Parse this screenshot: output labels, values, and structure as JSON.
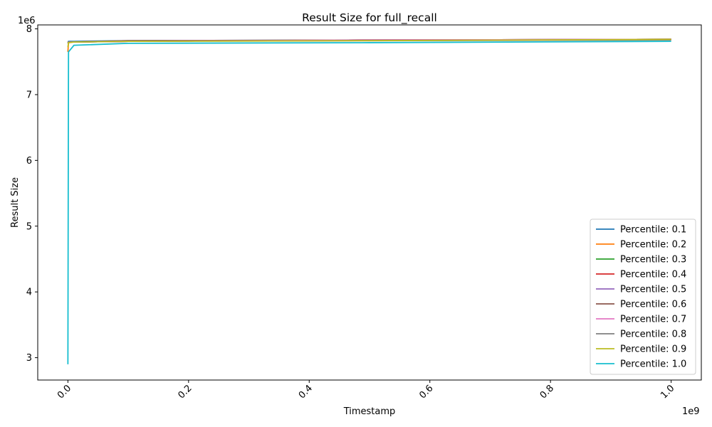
{
  "chart_data": {
    "type": "line",
    "title": "Result Size for full_recall",
    "xlabel": "Timestamp",
    "ylabel": "Result Size",
    "x_multiplier": "1e9",
    "y_multiplier": "1e6",
    "xlim": [
      -0.05,
      1.05
    ],
    "ylim": [
      2.66,
      8.06
    ],
    "x_ticks": [
      0.0,
      0.2,
      0.4,
      0.6,
      0.8,
      1.0
    ],
    "x_tick_labels": [
      "0.0",
      "0.2",
      "0.4",
      "0.6",
      "0.8",
      "1.0"
    ],
    "y_ticks": [
      3,
      4,
      5,
      6,
      7,
      8
    ],
    "y_tick_labels": [
      "3",
      "4",
      "5",
      "6",
      "7",
      "8"
    ],
    "grid": false,
    "legend_position": "lower-right",
    "series": [
      {
        "name": "Percentile: 0.1",
        "color": "#1f77b4",
        "x": [
          0,
          0.001,
          0.01,
          0.1,
          0.5,
          1.0
        ],
        "y": [
          7.8,
          7.81,
          7.81,
          7.82,
          7.83,
          7.84
        ]
      },
      {
        "name": "Percentile: 0.2",
        "color": "#ff7f0e",
        "x": [
          0,
          0.001,
          0.01,
          0.1,
          0.5,
          1.0
        ],
        "y": [
          7.65,
          7.79,
          7.8,
          7.81,
          7.83,
          7.84
        ]
      },
      {
        "name": "Percentile: 0.3",
        "color": "#2ca02c",
        "x": [
          0,
          0.001,
          0.01,
          0.1,
          0.5,
          1.0
        ],
        "y": [
          7.78,
          7.8,
          7.8,
          7.81,
          7.83,
          7.84
        ]
      },
      {
        "name": "Percentile: 0.4",
        "color": "#d62728",
        "x": [
          0,
          0.001,
          0.01,
          0.1,
          0.5,
          1.0
        ],
        "y": [
          7.79,
          7.8,
          7.8,
          7.81,
          7.83,
          7.84
        ]
      },
      {
        "name": "Percentile: 0.5",
        "color": "#9467bd",
        "x": [
          0,
          0.001,
          0.01,
          0.1,
          0.5,
          1.0
        ],
        "y": [
          7.79,
          7.8,
          7.8,
          7.81,
          7.83,
          7.84
        ]
      },
      {
        "name": "Percentile: 0.6",
        "color": "#8c564b",
        "x": [
          0,
          0.001,
          0.01,
          0.1,
          0.5,
          1.0
        ],
        "y": [
          7.79,
          7.8,
          7.8,
          7.82,
          7.83,
          7.84
        ]
      },
      {
        "name": "Percentile: 0.7",
        "color": "#e377c2",
        "x": [
          0,
          0.001,
          0.01,
          0.1,
          0.5,
          1.0
        ],
        "y": [
          7.78,
          7.8,
          7.8,
          7.81,
          7.83,
          7.84
        ]
      },
      {
        "name": "Percentile: 0.8",
        "color": "#7f7f7f",
        "x": [
          0,
          0.001,
          0.01,
          0.1,
          0.5,
          1.0
        ],
        "y": [
          7.78,
          7.8,
          7.8,
          7.81,
          7.82,
          7.83
        ]
      },
      {
        "name": "Percentile: 0.9",
        "color": "#bcbd22",
        "x": [
          0,
          0.001,
          0.01,
          0.1,
          0.5,
          1.0
        ],
        "y": [
          7.72,
          7.79,
          7.8,
          7.81,
          7.82,
          7.84
        ]
      },
      {
        "name": "Percentile: 1.0",
        "color": "#17becf",
        "x": [
          0,
          0.001,
          0.01,
          0.1,
          0.5,
          1.0
        ],
        "y": [
          2.9,
          7.65,
          7.75,
          7.78,
          7.79,
          7.81
        ]
      }
    ]
  }
}
